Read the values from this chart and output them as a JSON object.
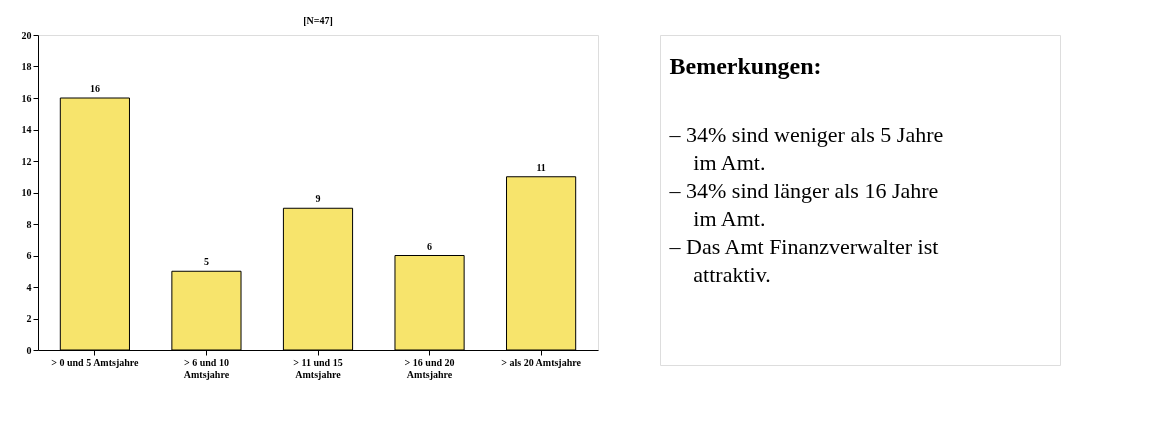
{
  "chart_data": {
    "type": "bar",
    "title": "[N=47]",
    "categories": [
      "> 0 und 5 Amtsjahre",
      "> 6 und 10 Amtsjahre",
      "> 11 und 15 Amtsjahre",
      "> 16 und 20 Amtsjahre",
      "> als 20 Amtsjahre"
    ],
    "values": [
      16,
      5,
      9,
      6,
      11
    ],
    "color": "#f7e46c",
    "ylim": [
      0,
      20
    ],
    "yticks": [
      0,
      2,
      4,
      6,
      8,
      10,
      12,
      14,
      16,
      18,
      20
    ],
    "grid": false,
    "data_labels": true,
    "annotations": [
      "Bemerkungen:",
      "– 34% sind weniger als 5 Jahre im Amt.",
      "– 34% sind länger als 16 Jahre im Amt.",
      "– Das Amt Finanzverwalter ist attraktiv."
    ]
  }
}
